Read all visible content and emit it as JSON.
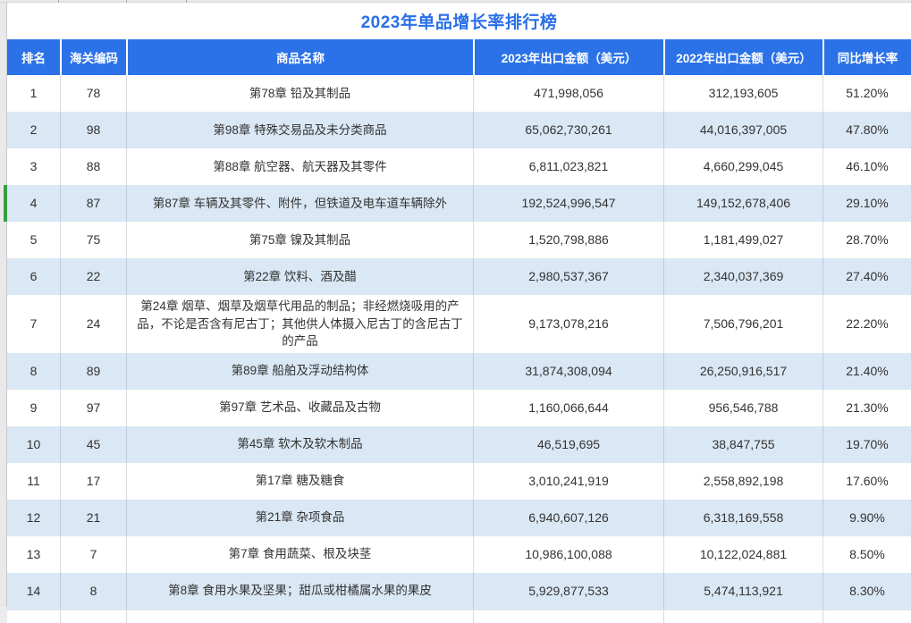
{
  "title": "2023年单品增长率排行榜",
  "table": {
    "columns": [
      "排名",
      "海关编码",
      "商品名称",
      "2023年出口金额（美元）",
      "2022年出口金额（美元）",
      "同比增长率"
    ],
    "rows": [
      {
        "rank": "1",
        "hs_code": "78",
        "name": "第78章 铅及其制品",
        "amount_2023": "471,998,056",
        "amount_2022": "312,193,605",
        "growth": "51.20%"
      },
      {
        "rank": "2",
        "hs_code": "98",
        "name": "第98章 特殊交易品及未分类商品",
        "amount_2023": "65,062,730,261",
        "amount_2022": "44,016,397,005",
        "growth": "47.80%"
      },
      {
        "rank": "3",
        "hs_code": "88",
        "name": "第88章 航空器、航天器及其零件",
        "amount_2023": "6,811,023,821",
        "amount_2022": "4,660,299,045",
        "growth": "46.10%"
      },
      {
        "rank": "4",
        "hs_code": "87",
        "name": "第87章 车辆及其零件、附件，但铁道及电车道车辆除外",
        "amount_2023": "192,524,996,547",
        "amount_2022": "149,152,678,406",
        "growth": "29.10%"
      },
      {
        "rank": "5",
        "hs_code": "75",
        "name": "第75章 镍及其制品",
        "amount_2023": "1,520,798,886",
        "amount_2022": "1,181,499,027",
        "growth": "28.70%"
      },
      {
        "rank": "6",
        "hs_code": "22",
        "name": "第22章 饮料、酒及醋",
        "amount_2023": "2,980,537,367",
        "amount_2022": "2,340,037,369",
        "growth": "27.40%"
      },
      {
        "rank": "7",
        "hs_code": "24",
        "name": "第24章 烟草、烟草及烟草代用品的制品；非经燃烧吸用的产品，不论是否含有尼古丁；其他供人体摄入尼古丁的含尼古丁的产品",
        "amount_2023": "9,173,078,216",
        "amount_2022": "7,506,796,201",
        "growth": "22.20%"
      },
      {
        "rank": "8",
        "hs_code": "89",
        "name": "第89章 船舶及浮动结构体",
        "amount_2023": "31,874,308,094",
        "amount_2022": "26,250,916,517",
        "growth": "21.40%"
      },
      {
        "rank": "9",
        "hs_code": "97",
        "name": "第97章 艺术品、收藏品及古物",
        "amount_2023": "1,160,066,644",
        "amount_2022": "956,546,788",
        "growth": "21.30%"
      },
      {
        "rank": "10",
        "hs_code": "45",
        "name": "第45章 软木及软木制品",
        "amount_2023": "46,519,695",
        "amount_2022": "38,847,755",
        "growth": "19.70%"
      },
      {
        "rank": "11",
        "hs_code": "17",
        "name": "第17章 糖及糖食",
        "amount_2023": "3,010,241,919",
        "amount_2022": "2,558,892,198",
        "growth": "17.60%"
      },
      {
        "rank": "12",
        "hs_code": "21",
        "name": "第21章 杂项食品",
        "amount_2023": "6,940,607,126",
        "amount_2022": "6,318,169,558",
        "growth": "9.90%"
      },
      {
        "rank": "13",
        "hs_code": "7",
        "name": "第7章 食用蔬菜、根及块茎",
        "amount_2023": "10,986,100,088",
        "amount_2022": "10,122,024,881",
        "growth": "8.50%"
      },
      {
        "rank": "14",
        "hs_code": "8",
        "name": "第8章 食用水果及坚果；甜瓜或柑橘属水果的果皮",
        "amount_2023": "5,929,877,533",
        "amount_2022": "5,474,113,921",
        "growth": "8.30%"
      }
    ]
  },
  "selection": {
    "selected_row_rank": "4"
  },
  "colors": {
    "header_bg": "#2B72E8",
    "header_text": "#FFFFFF",
    "alt_row_bg": "#DAE7F4",
    "title_text": "#2A6FE8",
    "body_text": "#333333",
    "selection_indicator": "#35A042"
  }
}
